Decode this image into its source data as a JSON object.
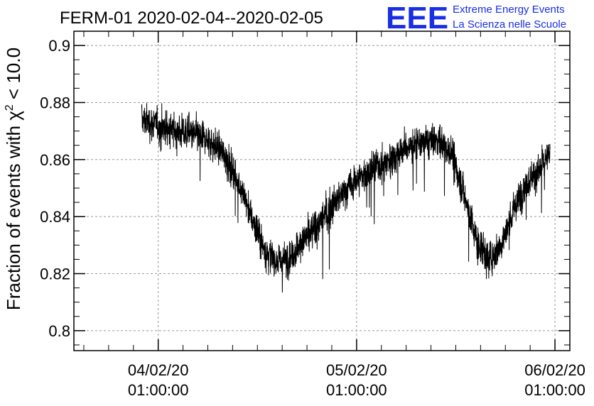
{
  "chart_data": {
    "type": "line",
    "title": "FERM-01 2020-02-04--2020-02-05",
    "ylabel_prefix": "Fraction of events with ",
    "ylabel_symbol": "χ",
    "ylabel_sup": "2",
    "ylabel_suffix": " < 10.0",
    "xlabel": "",
    "ylim": [
      0.793,
      0.905
    ],
    "xlim_hours": [
      -10.2,
      49.8
    ],
    "x_ticks": [
      {
        "line1": "04/02/20",
        "line2": "01:00:00",
        "hours": 0
      },
      {
        "line1": "05/02/20",
        "line2": "01:00:00",
        "hours": 24
      },
      {
        "line1": "06/02/20",
        "line2": "01:00:00",
        "hours": 48
      }
    ],
    "y_ticks": [
      {
        "label": "0.8",
        "value": 0.8
      },
      {
        "label": "0.82",
        "value": 0.82
      },
      {
        "label": "0.84",
        "value": 0.84
      },
      {
        "label": "0.86",
        "value": 0.86
      },
      {
        "label": "0.88",
        "value": 0.88
      },
      {
        "label": "0.9",
        "value": 0.9
      }
    ],
    "grid": true,
    "series": [
      {
        "x_unit": "hours since 04/02/20 01:00:00",
        "trend": [
          [
            -2.0,
            0.874
          ],
          [
            0.0,
            0.872
          ],
          [
            2.0,
            0.87
          ],
          [
            4.0,
            0.869
          ],
          [
            6.0,
            0.867
          ],
          [
            8.0,
            0.862
          ],
          [
            10.0,
            0.85
          ],
          [
            11.5,
            0.838
          ],
          [
            13.0,
            0.828
          ],
          [
            14.5,
            0.824
          ],
          [
            16.0,
            0.826
          ],
          [
            18.0,
            0.833
          ],
          [
            20.0,
            0.84
          ],
          [
            22.0,
            0.847
          ],
          [
            24.0,
            0.853
          ],
          [
            26.0,
            0.857
          ],
          [
            28.0,
            0.86
          ],
          [
            30.0,
            0.864
          ],
          [
            32.0,
            0.866
          ],
          [
            34.0,
            0.867
          ],
          [
            35.5,
            0.862
          ],
          [
            37.0,
            0.848
          ],
          [
            38.5,
            0.832
          ],
          [
            40.0,
            0.825
          ],
          [
            41.5,
            0.83
          ],
          [
            43.0,
            0.842
          ],
          [
            44.5,
            0.852
          ],
          [
            46.0,
            0.856
          ],
          [
            47.0,
            0.86
          ],
          [
            47.4,
            0.862
          ]
        ]
      }
    ]
  },
  "logo": {
    "text": "EEE",
    "line1": "Extreme Energy Events",
    "line2": "La Scienza nelle Scuole"
  }
}
